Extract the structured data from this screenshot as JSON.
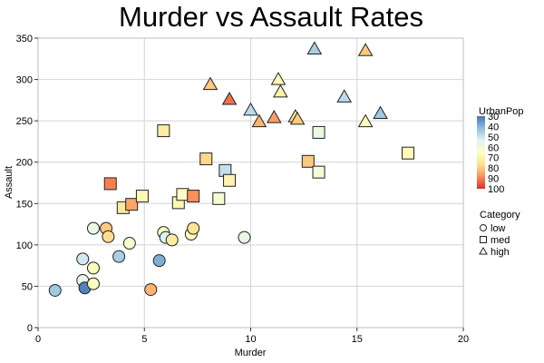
{
  "chart_data": {
    "type": "scatter",
    "title": "Murder vs Assault Rates",
    "xlabel": "Murder",
    "ylabel": "Assault",
    "xlim": [
      0,
      20
    ],
    "ylim": [
      0,
      350
    ],
    "xticks": [
      0,
      5,
      10,
      15,
      20
    ],
    "yticks": [
      0,
      50,
      100,
      150,
      200,
      250,
      300,
      350
    ],
    "grid": true,
    "color_legend": {
      "title": "UrbanPop",
      "ticks": [
        30,
        40,
        50,
        60,
        70,
        80,
        90,
        100
      ],
      "colormap": [
        "#4575b4",
        "#91bfdb",
        "#e0f3f8",
        "#ffffbf",
        "#fee090",
        "#fc8d59",
        "#d73027"
      ]
    },
    "shape_legend": {
      "title": "Category",
      "items": [
        {
          "label": "low",
          "shape": "circle"
        },
        {
          "label": "med",
          "shape": "square"
        },
        {
          "label": "high",
          "shape": "triangle"
        }
      ]
    },
    "points": [
      {
        "x": 0.8,
        "y": 45,
        "urbanpop": 44,
        "category": "low"
      },
      {
        "x": 2.1,
        "y": 57,
        "urbanpop": 56,
        "category": "low"
      },
      {
        "x": 2.2,
        "y": 48,
        "urbanpop": 32,
        "category": "low"
      },
      {
        "x": 2.1,
        "y": 83,
        "urbanpop": 51,
        "category": "low"
      },
      {
        "x": 2.6,
        "y": 53,
        "urbanpop": 66,
        "category": "low"
      },
      {
        "x": 2.6,
        "y": 72,
        "urbanpop": 66,
        "category": "low"
      },
      {
        "x": 2.6,
        "y": 120,
        "urbanpop": 58,
        "category": "low"
      },
      {
        "x": 3.2,
        "y": 120,
        "urbanpop": 80,
        "category": "low"
      },
      {
        "x": 3.3,
        "y": 110,
        "urbanpop": 77,
        "category": "low"
      },
      {
        "x": 3.8,
        "y": 86,
        "urbanpop": 45,
        "category": "low"
      },
      {
        "x": 4.3,
        "y": 102,
        "urbanpop": 62,
        "category": "low"
      },
      {
        "x": 5.3,
        "y": 46,
        "urbanpop": 83,
        "category": "low"
      },
      {
        "x": 5.7,
        "y": 81,
        "urbanpop": 39,
        "category": "low"
      },
      {
        "x": 5.9,
        "y": 115,
        "urbanpop": 64,
        "category": "low"
      },
      {
        "x": 6.0,
        "y": 109,
        "urbanpop": 53,
        "category": "low"
      },
      {
        "x": 6.3,
        "y": 106,
        "urbanpop": 72,
        "category": "low"
      },
      {
        "x": 7.2,
        "y": 113,
        "urbanpop": 65,
        "category": "low"
      },
      {
        "x": 7.3,
        "y": 120,
        "urbanpop": 75,
        "category": "low"
      },
      {
        "x": 9.7,
        "y": 109,
        "urbanpop": 57,
        "category": "low"
      },
      {
        "x": 3.4,
        "y": 174,
        "urbanpop": 90,
        "category": "med"
      },
      {
        "x": 4.0,
        "y": 145,
        "urbanpop": 73,
        "category": "med"
      },
      {
        "x": 4.4,
        "y": 149,
        "urbanpop": 85,
        "category": "med"
      },
      {
        "x": 4.9,
        "y": 159,
        "urbanpop": 68,
        "category": "med"
      },
      {
        "x": 5.9,
        "y": 238,
        "urbanpop": 72,
        "category": "med"
      },
      {
        "x": 6.6,
        "y": 151,
        "urbanpop": 68,
        "category": "med"
      },
      {
        "x": 6.8,
        "y": 161,
        "urbanpop": 64,
        "category": "med"
      },
      {
        "x": 7.3,
        "y": 159,
        "urbanpop": 88,
        "category": "med"
      },
      {
        "x": 7.9,
        "y": 204,
        "urbanpop": 78,
        "category": "med"
      },
      {
        "x": 8.5,
        "y": 156,
        "urbanpop": 62,
        "category": "med"
      },
      {
        "x": 8.8,
        "y": 190,
        "urbanpop": 49,
        "category": "med"
      },
      {
        "x": 9.0,
        "y": 178,
        "urbanpop": 69,
        "category": "med"
      },
      {
        "x": 12.7,
        "y": 201,
        "urbanpop": 80,
        "category": "med"
      },
      {
        "x": 13.2,
        "y": 188,
        "urbanpop": 60,
        "category": "med"
      },
      {
        "x": 13.2,
        "y": 236,
        "urbanpop": 58,
        "category": "med"
      },
      {
        "x": 17.4,
        "y": 211,
        "urbanpop": 66,
        "category": "med"
      },
      {
        "x": 8.1,
        "y": 294,
        "urbanpop": 80,
        "category": "high"
      },
      {
        "x": 9.0,
        "y": 276,
        "urbanpop": 92,
        "category": "high"
      },
      {
        "x": 10.0,
        "y": 263,
        "urbanpop": 48,
        "category": "high"
      },
      {
        "x": 10.4,
        "y": 249,
        "urbanpop": 83,
        "category": "high"
      },
      {
        "x": 11.1,
        "y": 254,
        "urbanpop": 86,
        "category": "high"
      },
      {
        "x": 11.3,
        "y": 300,
        "urbanpop": 67,
        "category": "high"
      },
      {
        "x": 11.4,
        "y": 285,
        "urbanpop": 70,
        "category": "high"
      },
      {
        "x": 12.1,
        "y": 255,
        "urbanpop": 74,
        "category": "high"
      },
      {
        "x": 12.2,
        "y": 252,
        "urbanpop": 80,
        "category": "high"
      },
      {
        "x": 13.0,
        "y": 337,
        "urbanpop": 45,
        "category": "high"
      },
      {
        "x": 14.4,
        "y": 279,
        "urbanpop": 48,
        "category": "high"
      },
      {
        "x": 15.4,
        "y": 249,
        "urbanpop": 66,
        "category": "high"
      },
      {
        "x": 15.4,
        "y": 335,
        "urbanpop": 80,
        "category": "high"
      },
      {
        "x": 16.1,
        "y": 259,
        "urbanpop": 44,
        "category": "high"
      }
    ]
  }
}
